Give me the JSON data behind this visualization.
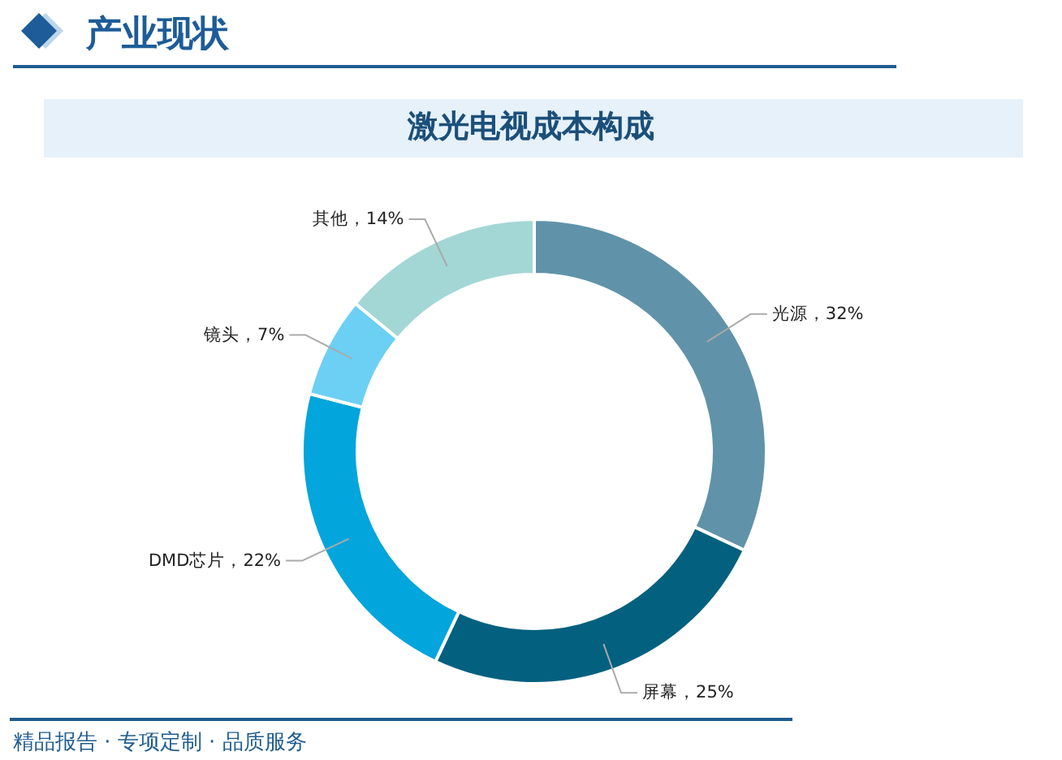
{
  "chart_data": {
    "type": "donut",
    "title": "激光电视成本构成",
    "categories": [
      "光源",
      "屏幕",
      "DMD芯片",
      "镜头",
      "其他"
    ],
    "values": [
      32,
      25,
      22,
      7,
      14
    ],
    "colors": [
      "#6093a9",
      "#03607f",
      "#02a5dc",
      "#6ccff4",
      "#a3d7d5"
    ],
    "value_labels": [
      "32%",
      "25%",
      "22%",
      "7%",
      "14%"
    ],
    "annotations": [
      "产业现状",
      "精品报告 · 专项定制 · 品质服务"
    ]
  }
}
